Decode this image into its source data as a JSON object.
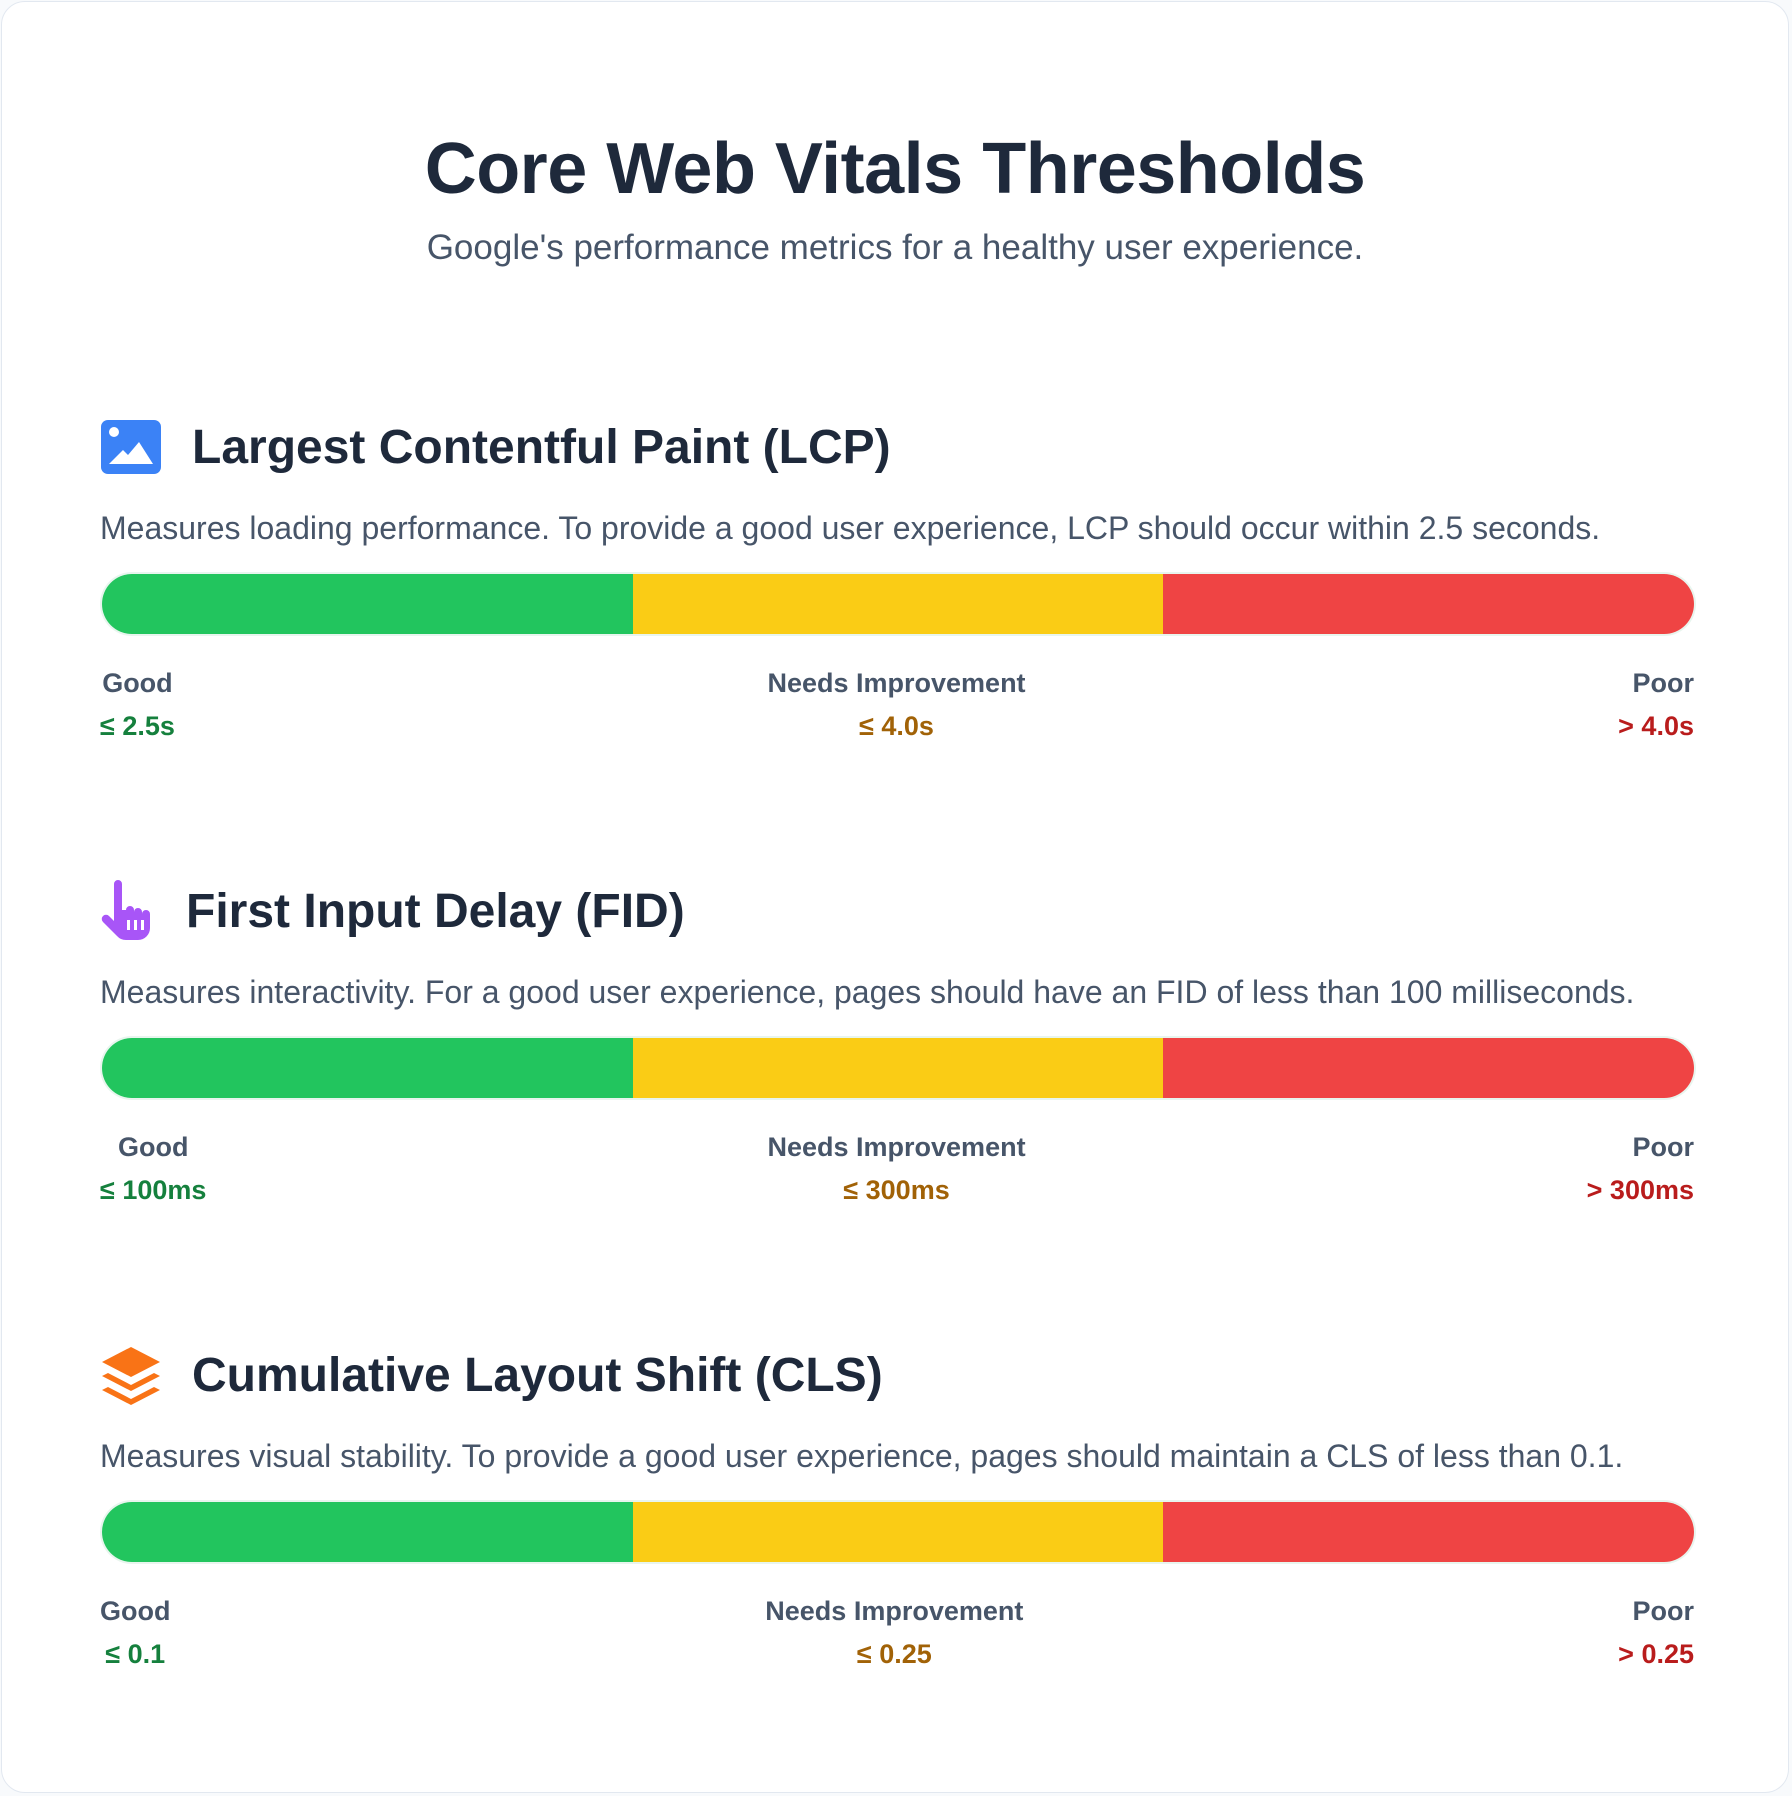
{
  "title": "Core Web Vitals Thresholds",
  "subtitle": "Google's performance metrics for a healthy user experience.",
  "colors": {
    "good": "#22c55e",
    "needs_improvement": "#facc15",
    "poor": "#ef4444"
  },
  "metrics": [
    {
      "icon": "image-icon",
      "title": "Largest Contentful Paint (LCP)",
      "description": "Measures loading performance. To provide a good user experience, LCP should occur within 2.5 seconds.",
      "labels": {
        "good": "Good",
        "good_value": "≤ 2.5s",
        "ni": "Needs Improvement",
        "ni_value": "≤ 4.0s",
        "poor": "Poor",
        "poor_value": "> 4.0s"
      }
    },
    {
      "icon": "pointer-hand-icon",
      "title": "First Input Delay (FID)",
      "description": "Measures interactivity. For a good user experience, pages should have an FID of less than 100 milliseconds.",
      "labels": {
        "good": "Good",
        "good_value": "≤ 100ms",
        "ni": "Needs Improvement",
        "ni_value": "≤ 300ms",
        "poor": "Poor",
        "poor_value": "> 300ms"
      }
    },
    {
      "icon": "layers-icon",
      "title": "Cumulative Layout Shift (CLS)",
      "description": "Measures visual stability. To provide a good user experience, pages should maintain a CLS of less than 0.1.",
      "labels": {
        "good": "Good",
        "good_value": "≤ 0.1",
        "ni": "Needs Improvement",
        "ni_value": "≤ 0.25",
        "poor": "Poor",
        "poor_value": "> 0.25"
      }
    }
  ]
}
